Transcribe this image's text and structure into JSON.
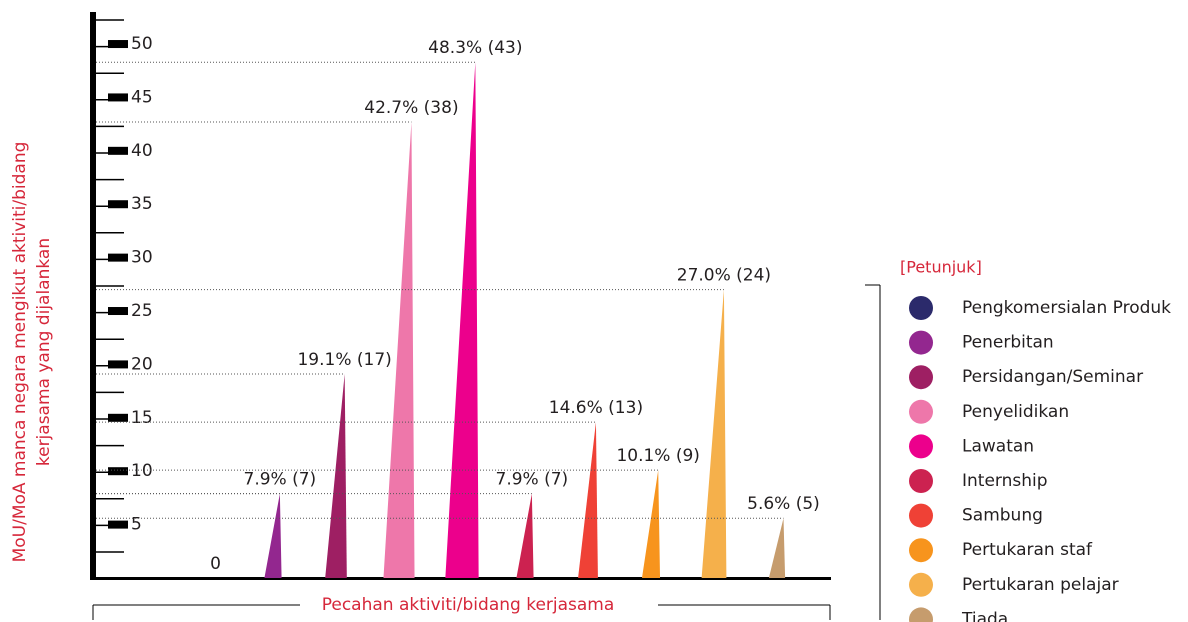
{
  "chart_data": {
    "type": "spike",
    "y_axis_label": [
      "MoU/MoA manca negara mengikut aktiviti/bidang",
      "kerjasama yang dijalankan"
    ],
    "x_axis_label": "Pecahan aktiviti/bidang kerjasama",
    "legend_title": "[Petunjuk]",
    "categories": [
      "Pengkomersialan Produk",
      "Penerbitan",
      "Persidangan/Seminar",
      "Penyelidikan",
      "Lawatan",
      "Internship",
      "Sambung",
      "Pertukaran staf",
      "Pertukaran pelajar",
      "Tiada"
    ],
    "values": [
      0,
      7.9,
      19.1,
      42.7,
      48.3,
      7.9,
      14.6,
      10.1,
      27.0,
      5.6
    ],
    "value_labels": [
      "0",
      "7.9% (7)",
      "19.1% (17)",
      "42.7% (38)",
      "48.3% (43)",
      "7.9% (7)",
      "14.6% (13)",
      "10.1% (9)",
      "27.0% (24)",
      "5.6% (5)"
    ],
    "colors": [
      "#2b2a6b",
      "#93278f",
      "#9e1f63",
      "#ee77aa",
      "#ec008c",
      "#cc2250",
      "#ef4136",
      "#f7941d",
      "#f5b04b",
      "#c69c6d"
    ],
    "ylim": [
      0,
      53
    ],
    "yticks": [
      5,
      10,
      15,
      20,
      25,
      30,
      35,
      40,
      45,
      50
    ]
  }
}
